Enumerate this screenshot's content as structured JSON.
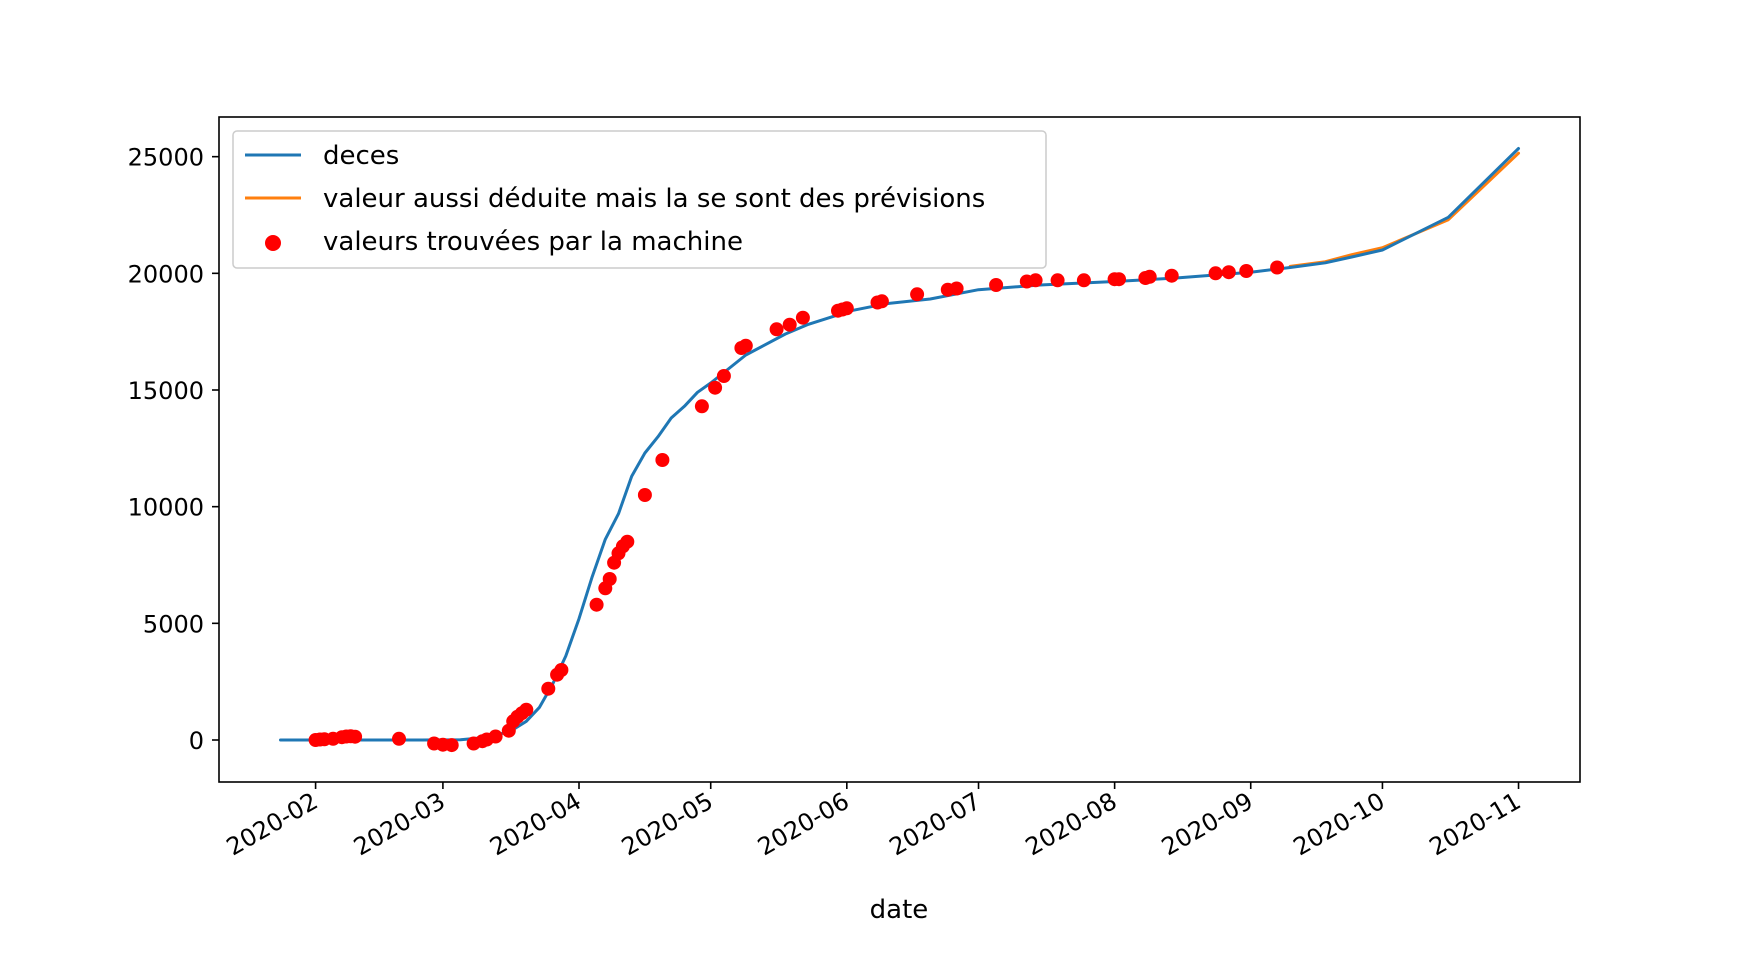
{
  "chart_data": {
    "type": "line",
    "title": "",
    "xlabel": "date",
    "ylabel": "",
    "x_axis_type": "date",
    "xlim": [
      "2020-01-10",
      "2020-11-15"
    ],
    "ylim": [
      -1800,
      26700
    ],
    "x_ticks": [
      "2020-02-01",
      "2020-03-01",
      "2020-04-01",
      "2020-05-01",
      "2020-06-01",
      "2020-07-01",
      "2020-08-01",
      "2020-09-01",
      "2020-10-01",
      "2020-11-01"
    ],
    "x_tick_labels": [
      "2020-02",
      "2020-03",
      "2020-04",
      "2020-05",
      "2020-06",
      "2020-07",
      "2020-08",
      "2020-09",
      "2020-10",
      "2020-11"
    ],
    "y_ticks": [
      0,
      5000,
      10000,
      15000,
      20000,
      25000
    ],
    "y_tick_labels": [
      "0",
      "5000",
      "10000",
      "15000",
      "20000",
      "25000"
    ],
    "grid": false,
    "legend_position": "upper-left",
    "series": [
      {
        "name": "deces",
        "kind": "line",
        "color": "#1f77b4",
        "x": [
          "2020-01-24",
          "2020-02-10",
          "2020-02-25",
          "2020-03-05",
          "2020-03-10",
          "2020-03-14",
          "2020-03-17",
          "2020-03-20",
          "2020-03-23",
          "2020-03-26",
          "2020-03-29",
          "2020-04-01",
          "2020-04-04",
          "2020-04-07",
          "2020-04-10",
          "2020-04-13",
          "2020-04-16",
          "2020-04-19",
          "2020-04-22",
          "2020-04-25",
          "2020-04-28",
          "2020-05-01",
          "2020-05-05",
          "2020-05-09",
          "2020-05-13",
          "2020-05-18",
          "2020-05-23",
          "2020-05-28",
          "2020-06-02",
          "2020-06-10",
          "2020-06-20",
          "2020-07-01",
          "2020-07-15",
          "2020-08-01",
          "2020-08-15",
          "2020-09-01",
          "2020-09-10",
          "2020-09-18",
          "2020-09-24",
          "2020-10-01",
          "2020-10-16",
          "2020-11-01"
        ],
        "y": [
          0,
          0,
          0,
          10,
          100,
          250,
          450,
          800,
          1400,
          2400,
          3600,
          5200,
          7000,
          8600,
          9700,
          11300,
          12300,
          13000,
          13800,
          14300,
          14900,
          15300,
          15900,
          16500,
          16900,
          17400,
          17800,
          18100,
          18400,
          18700,
          18900,
          19300,
          19500,
          19650,
          19800,
          20050,
          20250,
          20450,
          20700,
          21000,
          22400,
          25350
        ]
      },
      {
        "name": "valeur aussi déduite mais la se sont des prévisions",
        "kind": "line",
        "color": "#ff7f0e",
        "x": [
          "2020-09-10",
          "2020-09-18",
          "2020-09-24",
          "2020-10-01",
          "2020-10-16",
          "2020-11-01"
        ],
        "y": [
          20300,
          20500,
          20800,
          21100,
          22300,
          25150
        ]
      },
      {
        "name": "valeurs trouvées par la machine",
        "kind": "scatter",
        "color": "#ff0000",
        "x": [
          "2020-02-01",
          "2020-02-02",
          "2020-02-03",
          "2020-02-05",
          "2020-02-07",
          "2020-02-08",
          "2020-02-09",
          "2020-02-10",
          "2020-02-20",
          "2020-02-28",
          "2020-03-01",
          "2020-03-03",
          "2020-03-08",
          "2020-03-10",
          "2020-03-11",
          "2020-03-13",
          "2020-03-16",
          "2020-03-17",
          "2020-03-18",
          "2020-03-19",
          "2020-03-20",
          "2020-03-25",
          "2020-03-27",
          "2020-03-28",
          "2020-04-05",
          "2020-04-07",
          "2020-04-08",
          "2020-04-09",
          "2020-04-10",
          "2020-04-11",
          "2020-04-12",
          "2020-04-16",
          "2020-04-20",
          "2020-04-29",
          "2020-05-02",
          "2020-05-04",
          "2020-05-08",
          "2020-05-09",
          "2020-05-16",
          "2020-05-19",
          "2020-05-22",
          "2020-05-30",
          "2020-05-31",
          "2020-06-01",
          "2020-06-08",
          "2020-06-09",
          "2020-06-17",
          "2020-06-24",
          "2020-06-26",
          "2020-07-05",
          "2020-07-12",
          "2020-07-14",
          "2020-07-19",
          "2020-07-25",
          "2020-08-01",
          "2020-08-02",
          "2020-08-08",
          "2020-08-09",
          "2020-08-14",
          "2020-08-24",
          "2020-08-27",
          "2020-08-31",
          "2020-09-07"
        ],
        "y": [
          0,
          20,
          30,
          50,
          120,
          150,
          160,
          140,
          50,
          -150,
          -200,
          -220,
          -150,
          -50,
          20,
          150,
          400,
          800,
          1000,
          1150,
          1300,
          2200,
          2800,
          3000,
          5800,
          6500,
          6900,
          7600,
          8000,
          8300,
          8500,
          10500,
          12000,
          14300,
          15100,
          15600,
          16800,
          16900,
          17600,
          17800,
          18100,
          18400,
          18450,
          18500,
          18750,
          18800,
          19100,
          19300,
          19350,
          19500,
          19650,
          19700,
          19700,
          19700,
          19750,
          19750,
          19800,
          19850,
          19900,
          20000,
          20050,
          20100,
          20250
        ]
      }
    ]
  }
}
